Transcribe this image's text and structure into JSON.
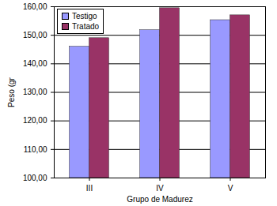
{
  "chart_data": {
    "type": "bar",
    "categories": [
      "III",
      "IV",
      "V"
    ],
    "series": [
      {
        "name": "Testigo",
        "color": "#9999ff",
        "values": [
          146,
          151.8,
          155.3
        ]
      },
      {
        "name": "Tratado",
        "color": "#993366",
        "values": [
          149,
          159.5,
          157
        ]
      }
    ],
    "x_label": "Grupo de Madurez",
    "y_label": "Peso (gr",
    "ylim": [
      100,
      160
    ],
    "yticks": [
      {
        "value": 100,
        "label": "100,00"
      },
      {
        "value": 110,
        "label": "110,00"
      },
      {
        "value": 120,
        "label": "120,00"
      },
      {
        "value": 130,
        "label": "130,00"
      },
      {
        "value": 140,
        "label": "140,00"
      },
      {
        "value": 150,
        "label": "150,00"
      },
      {
        "value": 160,
        "label": "160,00"
      }
    ],
    "grid": true,
    "legend": "top-left"
  }
}
